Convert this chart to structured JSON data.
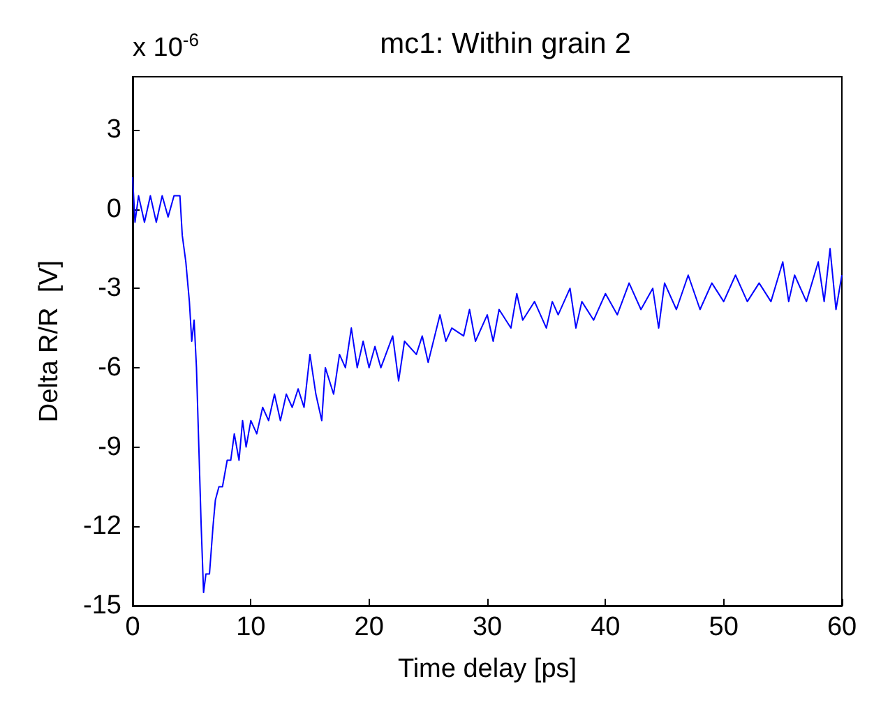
{
  "chart_data": {
    "type": "line",
    "title": "mc1: Within grain 2",
    "xlabel": "Time delay [ps]",
    "ylabel": "Delta R/R  [V]",
    "annotations": [
      "x 10$^{-6}$"
    ],
    "x": [
      0,
      0.2,
      0.5,
      1,
      1.5,
      2,
      2.5,
      3,
      3.5,
      4,
      4.2,
      4.5,
      4.8,
      5,
      5.2,
      5.4,
      5.6,
      5.8,
      6,
      6.2,
      6.5,
      6.8,
      7,
      7.3,
      7.6,
      8,
      8.3,
      8.6,
      9,
      9.3,
      9.6,
      10,
      10.5,
      11,
      11.5,
      12,
      12.5,
      13,
      13.5,
      14,
      14.5,
      15,
      15.5,
      16,
      16.3,
      17,
      17.5,
      18,
      18.5,
      19,
      19.5,
      20,
      20.5,
      21,
      22,
      22.5,
      23,
      24,
      24.5,
      25,
      26,
      26.5,
      27,
      28,
      28.5,
      29,
      30,
      30.5,
      31,
      32,
      32.5,
      33,
      34,
      35,
      35.5,
      36,
      37,
      37.5,
      38,
      39,
      40,
      41,
      42,
      43,
      44,
      44.5,
      45,
      46,
      47,
      48,
      49,
      50,
      51,
      52,
      53,
      54,
      55,
      55.5,
      56,
      57,
      58,
      58.5,
      59,
      59.5,
      60
    ],
    "series": [
      {
        "color": "#0000ff",
        "values": [
          1.2,
          -0.5,
          0.5,
          -0.5,
          0.5,
          -0.5,
          0.5,
          -0.3,
          0.5,
          0.5,
          -1,
          -2,
          -3.5,
          -5,
          -4.2,
          -6,
          -9,
          -12,
          -14.5,
          -13.8,
          -13.8,
          -12,
          -11,
          -10.5,
          -10.5,
          -9.5,
          -9.5,
          -8.5,
          -9.5,
          -8,
          -9,
          -8,
          -8.5,
          -7.5,
          -8,
          -7,
          -8,
          -7,
          -7.5,
          -6.8,
          -7.5,
          -5.5,
          -7,
          -8,
          -6,
          -7,
          -5.5,
          -6,
          -4.5,
          -6,
          -5,
          -6,
          -5.2,
          -6,
          -4.8,
          -6.5,
          -5,
          -5.5,
          -4.8,
          -5.8,
          -4,
          -5,
          -4.5,
          -4.8,
          -3.8,
          -5,
          -4,
          -5,
          -3.8,
          -4.5,
          -3.2,
          -4.2,
          -3.5,
          -4.5,
          -3.5,
          -4,
          -3,
          -4.5,
          -3.5,
          -4.2,
          -3.2,
          -4,
          -2.8,
          -3.8,
          -3,
          -4.5,
          -2.8,
          -3.8,
          -2.5,
          -3.8,
          -2.8,
          -3.5,
          -2.5,
          -3.5,
          -2.8,
          -3.5,
          -2,
          -3.5,
          -2.5,
          -3.5,
          -2,
          -3.5,
          -1.5,
          -3.8,
          -2.5
        ]
      }
    ],
    "xlim": [
      0,
      60
    ],
    "xticks": [
      0,
      10,
      20,
      30,
      40,
      50,
      60
    ],
    "ylim": [
      -15,
      5
    ],
    "yticks": [
      -15,
      -12,
      -9,
      -6,
      -3,
      0,
      3
    ],
    "grid": false,
    "marker": "none",
    "line_style": "solid"
  }
}
